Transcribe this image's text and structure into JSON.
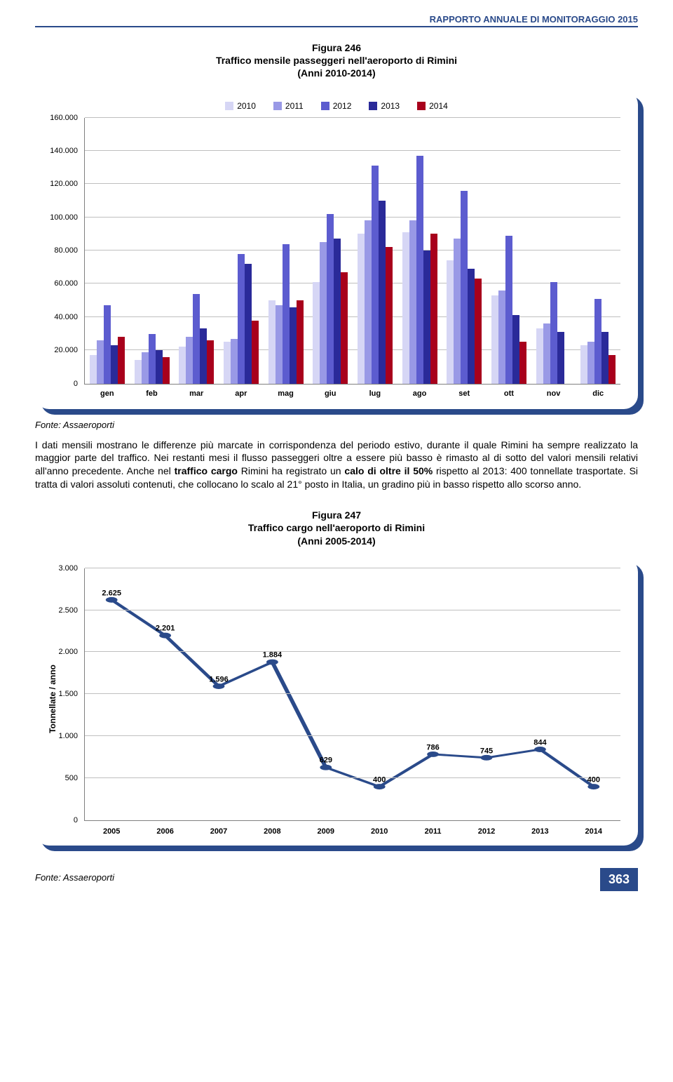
{
  "header": "RAPPORTO ANNUALE DI MONITORAGGIO 2015",
  "fig246": {
    "title_l1": "Figura 246",
    "title_l2": "Traffico mensile passeggeri nell'aeroporto di Rimini",
    "title_l3": "(Anni 2010-2014)",
    "ylim": [
      0,
      160000
    ],
    "ytick_step": 20000,
    "yticks": [
      "0",
      "20.000",
      "40.000",
      "60.000",
      "80.000",
      "100.000",
      "120.000",
      "140.000",
      "160.000"
    ],
    "months": [
      "gen",
      "feb",
      "mar",
      "apr",
      "mag",
      "giu",
      "lug",
      "ago",
      "set",
      "ott",
      "nov",
      "dic"
    ],
    "series": [
      {
        "label": "2010",
        "color": "#d6d6f5"
      },
      {
        "label": "2011",
        "color": "#9999e6"
      },
      {
        "label": "2012",
        "color": "#5c5ccf"
      },
      {
        "label": "2013",
        "color": "#2a2a99"
      },
      {
        "label": "2014",
        "color": "#a8001c"
      }
    ],
    "data": {
      "2010": [
        17000,
        14000,
        22000,
        25000,
        50000,
        61000,
        90000,
        91000,
        74000,
        53000,
        33000,
        23000
      ],
      "2011": [
        26000,
        19000,
        28000,
        27000,
        47000,
        85000,
        98000,
        98000,
        87000,
        56000,
        36000,
        25000
      ],
      "2012": [
        47000,
        30000,
        54000,
        78000,
        84000,
        102000,
        131000,
        137000,
        116000,
        89000,
        61000,
        51000
      ],
      "2013": [
        23000,
        20000,
        33000,
        72000,
        46000,
        87000,
        110000,
        80000,
        69000,
        41000,
        31000,
        31000
      ],
      "2014": [
        28000,
        16000,
        26000,
        38000,
        50000,
        67000,
        82000,
        90000,
        63000,
        25000,
        0,
        17000
      ]
    }
  },
  "source_label": "Fonte: Assaeroporti",
  "paragraph": "I dati mensili mostrano le differenze più marcate in corrispondenza del periodo estivo, durante il quale Rimini ha sempre realizzato la maggior parte del traffico. Nei restanti mesi il flusso passeggeri oltre a essere più basso è rimasto al di sotto del valori mensili relativi all'anno precedente. Anche nel <b>traffico cargo</b> Rimini ha registrato un <b>calo di oltre il 50%</b> rispetto al 2013: 400 tonnellate trasportate. Si tratta di valori assoluti contenuti, che collocano lo scalo al 21° posto in Italia, un gradino più in basso rispetto allo scorso anno.",
  "fig247": {
    "title_l1": "Figura 247",
    "title_l2": "Traffico cargo nell'aeroporto di Rimini",
    "title_l3": "(Anni 2005-2014)",
    "ylabel": "Tonnellate / anno",
    "ylim": [
      0,
      3000
    ],
    "ytick_step": 500,
    "yticks": [
      "0",
      "500",
      "1.000",
      "1.500",
      "2.000",
      "2.500",
      "3.000"
    ],
    "years": [
      "2005",
      "2006",
      "2007",
      "2008",
      "2009",
      "2010",
      "2011",
      "2012",
      "2013",
      "2014"
    ],
    "values": [
      2625,
      2201,
      1596,
      1884,
      629,
      400,
      786,
      745,
      844,
      400
    ],
    "labels": [
      "2.625",
      "2.201",
      "1.596",
      "1.884",
      "629",
      "400",
      "786",
      "745",
      "844",
      "400"
    ],
    "line_color": "#2a4a8a",
    "marker_color": "#2a4a8a",
    "grid_color": "#bfbfbf"
  },
  "page_number": "363"
}
